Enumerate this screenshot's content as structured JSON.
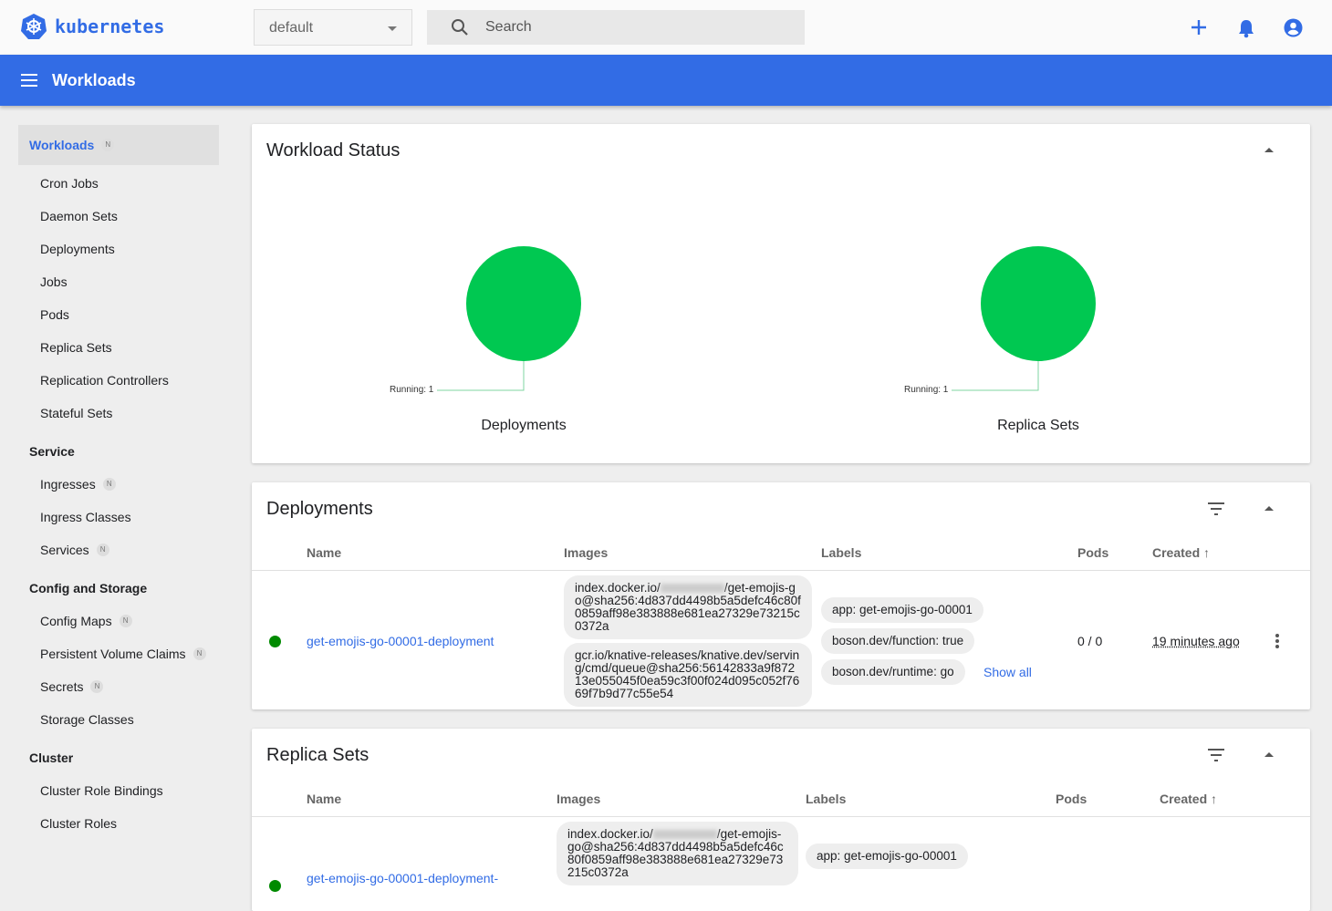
{
  "app": {
    "brand": "kubernetes",
    "namespace": "default",
    "search_placeholder": "Search",
    "page_title": "Workloads",
    "accent": "#326ce5",
    "running_color": "#00c851"
  },
  "topbar_icons": [
    "plus-icon",
    "bell-icon",
    "account-icon"
  ],
  "sidebar": {
    "sections": [
      {
        "title": "Workloads",
        "badge": "N",
        "items": [
          {
            "label": "Cron Jobs"
          },
          {
            "label": "Daemon Sets"
          },
          {
            "label": "Deployments"
          },
          {
            "label": "Jobs"
          },
          {
            "label": "Pods"
          },
          {
            "label": "Replica Sets"
          },
          {
            "label": "Replication Controllers"
          },
          {
            "label": "Stateful Sets"
          }
        ]
      },
      {
        "title": "Service",
        "items": [
          {
            "label": "Ingresses",
            "badge": "N"
          },
          {
            "label": "Ingress Classes"
          },
          {
            "label": "Services",
            "badge": "N"
          }
        ]
      },
      {
        "title": "Config and Storage",
        "items": [
          {
            "label": "Config Maps",
            "badge": "N"
          },
          {
            "label": "Persistent Volume Claims",
            "badge": "N"
          },
          {
            "label": "Secrets",
            "badge": "N"
          },
          {
            "label": "Storage Classes"
          }
        ]
      },
      {
        "title": "Cluster",
        "items": [
          {
            "label": "Cluster Role Bindings"
          },
          {
            "label": "Cluster Roles"
          }
        ]
      }
    ]
  },
  "workload_status": {
    "title": "Workload Status",
    "charts": [
      {
        "name": "Deployments",
        "label": "Running: 1",
        "running": 1
      },
      {
        "name": "Replica Sets",
        "label": "Running: 1",
        "running": 1
      }
    ]
  },
  "deployments": {
    "title": "Deployments",
    "columns": [
      "Name",
      "Images",
      "Labels",
      "Pods",
      "Created"
    ],
    "rows": [
      {
        "status": "running",
        "name": "get-emojis-go-00001-deployment",
        "image1_a": "index.docker.io/",
        "image1_b": "/get-emojis-go@sha256:4d837dd4498b5a5defc46c80f0859aff98e383888e681ea27329e73215c0372a",
        "image2": "gcr.io/knative-releases/knative.dev/serving/cmd/queue@sha256:56142833a9f87213e055045f0ea59c3f00f024d095c052f7669f7b9d77c55e54",
        "labels": [
          "app: get-emojis-go-00001",
          "boson.dev/function: true",
          "boson.dev/runtime: go"
        ],
        "show_all": "Show all",
        "pods": "0 / 0",
        "created": "19 minutes ago"
      }
    ]
  },
  "replica_sets": {
    "title": "Replica Sets",
    "columns": [
      "Name",
      "Images",
      "Labels",
      "Pods",
      "Created"
    ],
    "rows": [
      {
        "name": "get-emojis-go-00001-deployment-",
        "image1_a": "index.docker.io/",
        "image1_b": "/get-emojis-go@sha256:4d837dd4498b5a5defc46c80f0859aff98e383888e681ea27329e73215c0372a",
        "labels": [
          "app: get-emojis-go-00001"
        ]
      }
    ]
  }
}
